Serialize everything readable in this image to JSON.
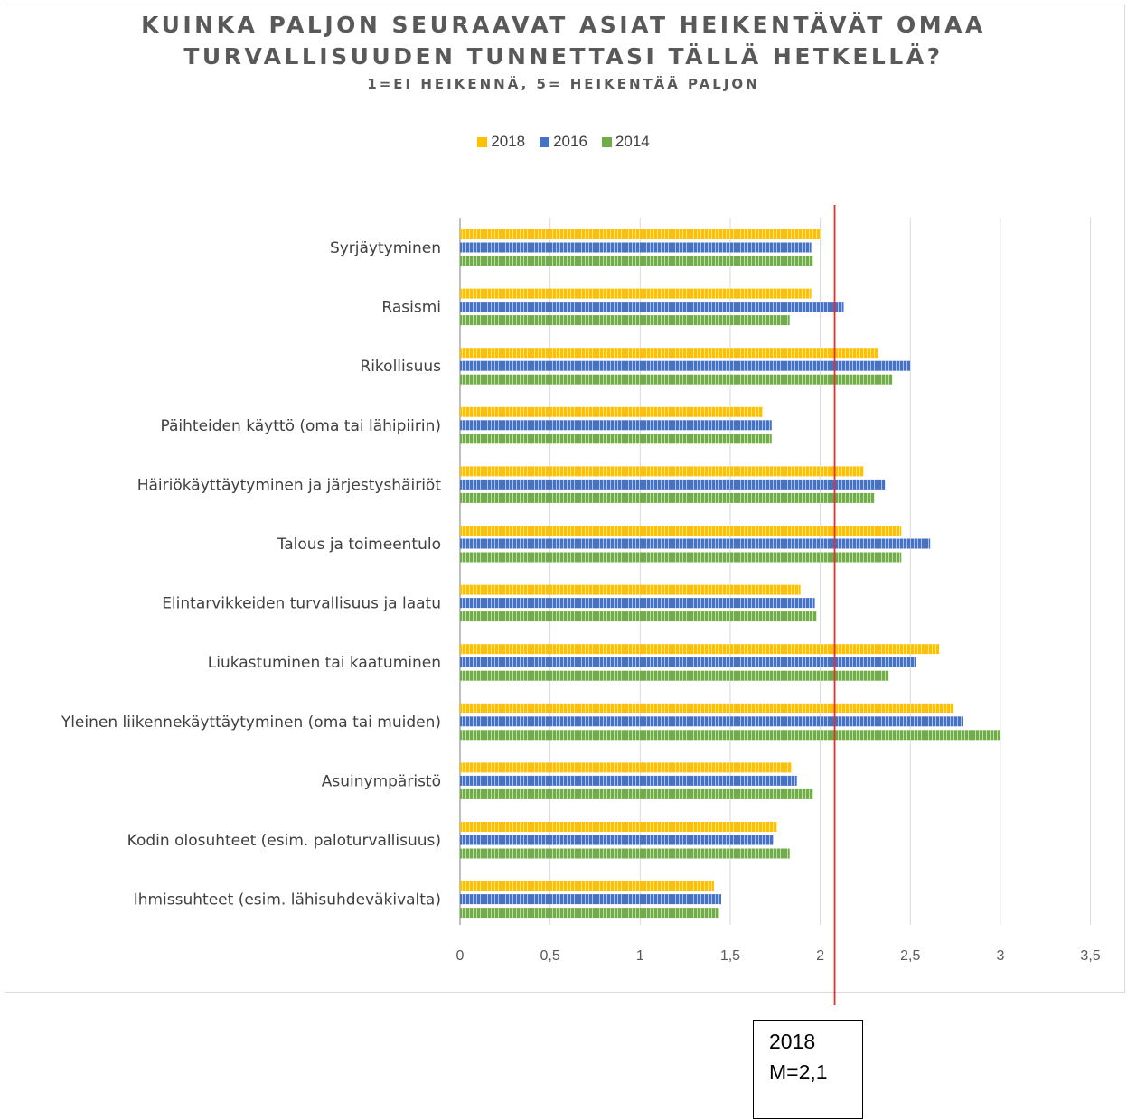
{
  "chart_data": {
    "type": "bar",
    "orientation": "horizontal",
    "title": "KUINKA PALJON SEURAAVAT ASIAT HEIKENTÄVÄT OMAA TURVALLISUUDEN TUNNETTASI TÄLLÄ HETKELLÄ?",
    "title_lines": [
      "KUINKA PALJON SEURAAVAT ASIAT HEIKENTÄVÄT OMAA",
      "TURVALLISUUDEN TUNNETTASI TÄLLÄ HETKELLÄ?"
    ],
    "subtitle": "1=EI HEIKENNÄ, 5= HEIKENTÄÄ PALJON",
    "xlabel": "",
    "ylabel": "",
    "xlim": [
      0,
      3.5
    ],
    "x_ticks": [
      "0",
      "0,5",
      "1",
      "1,5",
      "2",
      "2,5",
      "3",
      "3,5"
    ],
    "x_tick_values": [
      0,
      0.5,
      1,
      1.5,
      2,
      2.5,
      3,
      3.5
    ],
    "grid": true,
    "legend_position": "top-center",
    "categories": [
      "Syrjäytyminen",
      "Rasismi",
      "Rikollisuus",
      "Päihteiden käyttö (oma tai lähipiirin)",
      "Häiriökäyttäytyminen ja järjestyshäiriöt",
      "Talous ja toimeentulo",
      "Elintarvikkeiden turvallisuus ja laatu",
      "Liukastuminen tai kaatuminen",
      "Yleinen liikennekäyttäytyminen (oma tai muiden)",
      "Asuinympäristö",
      "Kodin olosuhteet (esim. paloturvallisuus)",
      "Ihmissuhteet (esim. lähisuhdeväkivalta)"
    ],
    "series": [
      {
        "name": "2018",
        "color": "#ffc000",
        "values": [
          2.0,
          1.95,
          2.32,
          1.68,
          2.24,
          2.45,
          1.89,
          2.66,
          2.74,
          1.84,
          1.76,
          1.41
        ]
      },
      {
        "name": "2016",
        "color": "#4472c4",
        "values": [
          1.95,
          2.13,
          2.5,
          1.73,
          2.36,
          2.61,
          1.97,
          2.53,
          2.79,
          1.87,
          1.74,
          1.45
        ]
      },
      {
        "name": "2014",
        "color": "#70ad47",
        "values": [
          1.96,
          1.83,
          2.4,
          1.73,
          2.3,
          2.45,
          1.98,
          2.38,
          3.0,
          1.96,
          1.83,
          1.44
        ]
      }
    ],
    "reference_line": {
      "value": 2.08,
      "color": "#e03030"
    },
    "annotation": {
      "lines": [
        "2018",
        "M=2,1"
      ]
    }
  }
}
